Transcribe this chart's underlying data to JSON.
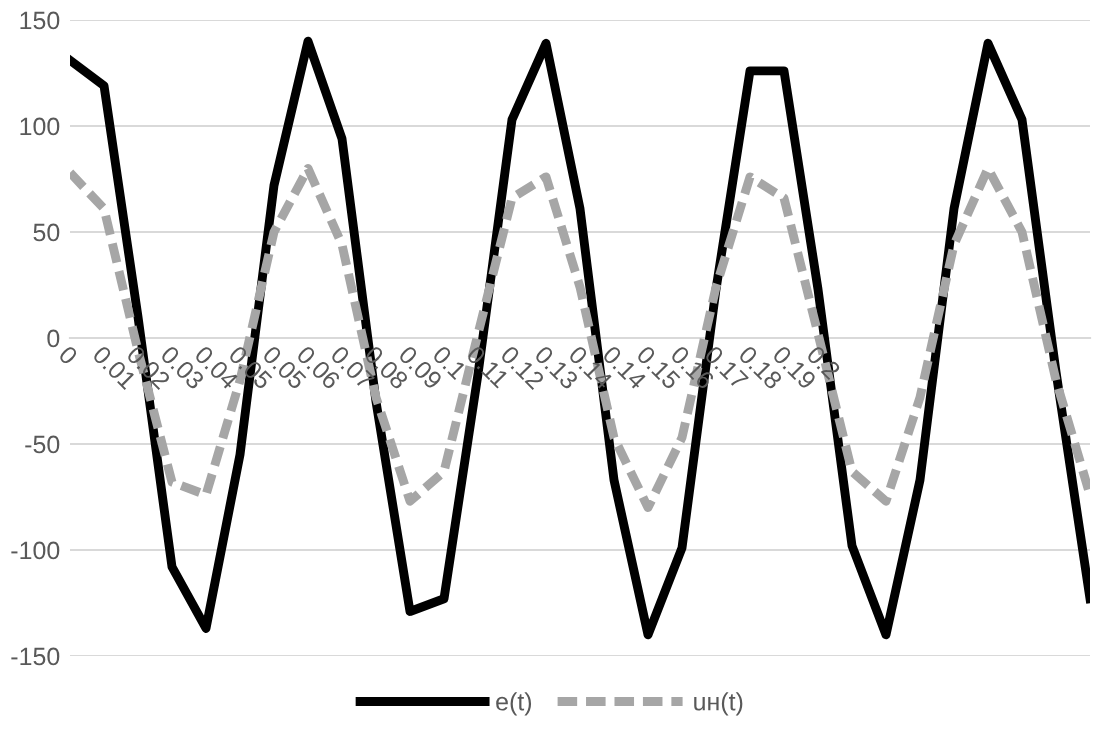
{
  "chart_data": {
    "type": "line",
    "categories": [
      "0",
      "0.01",
      "0.02",
      "0.03",
      "0.04",
      "0.05",
      "0.05",
      "0.06",
      "0.07",
      "0.08",
      "0.09",
      "0.1",
      "0.11",
      "0.12",
      "0.13",
      "0.14",
      "0.14",
      "0.15",
      "0.16",
      "0.17",
      "0.18",
      "0.19",
      "0.2",
      null,
      null,
      null,
      null,
      null,
      null,
      null,
      null
    ],
    "series": [
      {
        "name": "e(t)",
        "color": "#000000",
        "line_style": "solid",
        "values": [
          131,
          119,
          10,
          -108,
          -137,
          -55,
          72,
          140,
          94,
          -30,
          -129,
          -123,
          -17,
          103,
          139,
          61,
          -67,
          -140,
          -99,
          23,
          126,
          126,
          23,
          -98,
          -140,
          -67,
          61,
          139,
          103,
          -16,
          -123
        ]
      },
      {
        "name": "uн(t)",
        "color": "#a6a6a6",
        "line_style": "dashed",
        "values": [
          78,
          61,
          -6,
          -68,
          -74,
          -20,
          50,
          80,
          44,
          -28,
          -77,
          -63,
          2,
          66,
          76,
          24,
          -47,
          -80,
          -47,
          24,
          76,
          66,
          2,
          -63,
          -77,
          -28,
          44,
          80,
          50,
          -20,
          -74
        ]
      }
    ],
    "ylim": [
      -150,
      150
    ],
    "yticks": [
      -150,
      -100,
      -50,
      0,
      50,
      100,
      150
    ],
    "grid": "y",
    "legend": "bottom",
    "marker": "none"
  }
}
